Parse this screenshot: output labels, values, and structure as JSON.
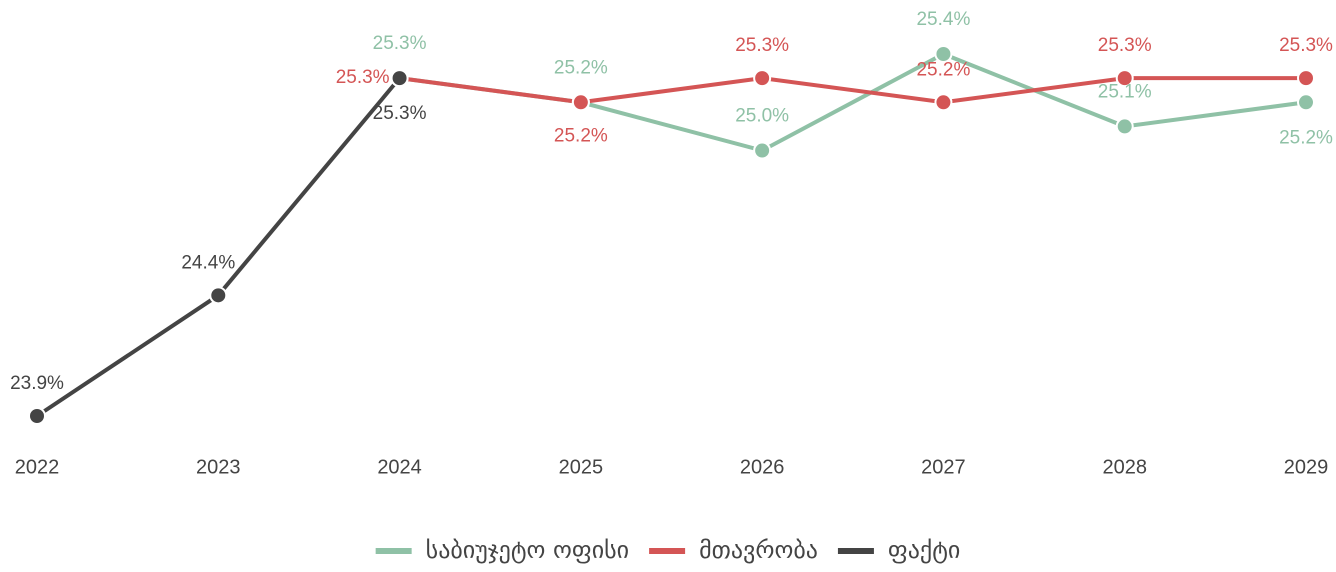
{
  "chart_data": {
    "type": "line",
    "categories": [
      "2022",
      "2023",
      "2024",
      "2025",
      "2026",
      "2027",
      "2028",
      "2029"
    ],
    "series": [
      {
        "name": "საბიუჯეტო ოფისი",
        "color": "#8fc1a6",
        "values": [
          null,
          null,
          25.3,
          25.2,
          25.0,
          25.4,
          25.1,
          25.2
        ],
        "value_labels": [
          null,
          null,
          "25.3%",
          "25.2%",
          "25.0%",
          "25.4%",
          "25.1%",
          "25.2%"
        ]
      },
      {
        "name": "მთავრობა",
        "color": "#d45555",
        "values": [
          null,
          null,
          25.3,
          25.2,
          25.3,
          25.2,
          25.3,
          25.3
        ],
        "value_labels": [
          null,
          null,
          "25.3%",
          "25.2%",
          "25.3%",
          "25.2%",
          "25.3%",
          "25.3%"
        ]
      },
      {
        "name": "ფაქტი",
        "color": "#444444",
        "values": [
          23.9,
          24.4,
          25.3,
          null,
          null,
          null,
          null,
          null
        ],
        "value_labels": [
          "23.9%",
          "24.4%",
          "25.3%",
          null,
          null,
          null,
          null,
          null
        ]
      }
    ],
    "legend": "bottom"
  }
}
